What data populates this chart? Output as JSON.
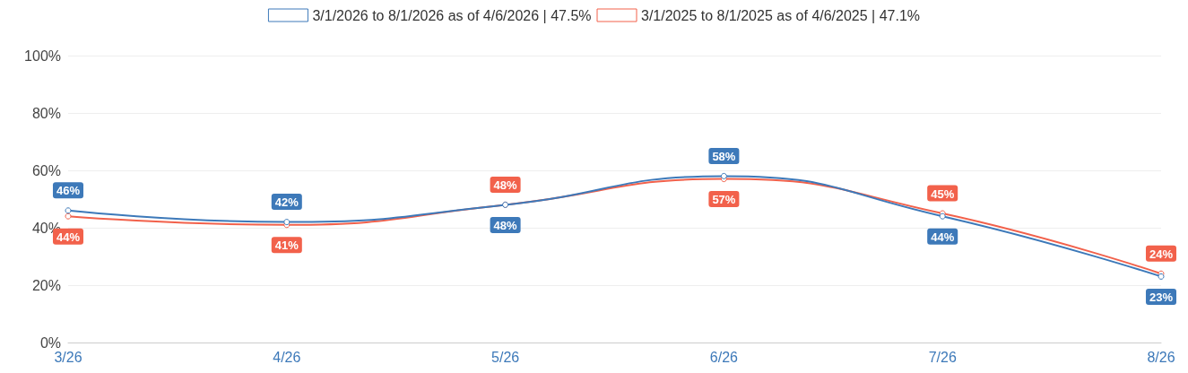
{
  "chart_data": {
    "type": "line",
    "categories": [
      "3/26",
      "4/26",
      "5/26",
      "6/26",
      "7/26",
      "8/26"
    ],
    "series": [
      {
        "name": "3/1/2026 to 8/1/2026 as of 4/6/2026 | 47.5%",
        "color": "#3d79b9",
        "values": [
          46,
          42,
          48,
          58,
          44,
          23
        ],
        "value_labels": [
          "46%",
          "42%",
          "48%",
          "58%",
          "44%",
          "23%"
        ]
      },
      {
        "name": "3/1/2025 to 8/1/2025 as of 4/6/2025 | 47.1%",
        "color": "#f2614b",
        "values": [
          44,
          41,
          48,
          57,
          45,
          24
        ],
        "value_labels": [
          "44%",
          "41%",
          "48%",
          "57%",
          "45%",
          "24%"
        ]
      }
    ],
    "ylim": [
      0,
      100
    ],
    "yticks": [
      {
        "value": 0,
        "label": "0%"
      },
      {
        "value": 20,
        "label": "20%"
      },
      {
        "value": 40,
        "label": "40%"
      },
      {
        "value": 60,
        "label": "60%"
      },
      {
        "value": 80,
        "label": "80%"
      },
      {
        "value": 100,
        "label": "100%"
      }
    ],
    "grid": "y",
    "legend": "top",
    "marker": "circle",
    "line_style": "solid"
  }
}
